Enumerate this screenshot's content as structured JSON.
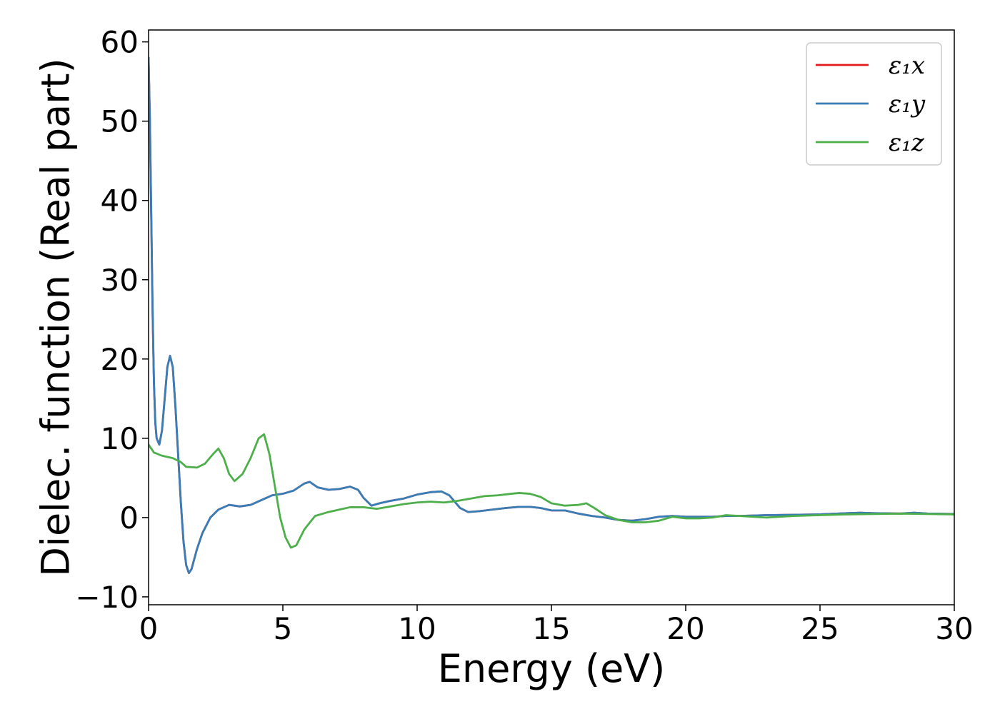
{
  "chart_data": {
    "type": "line",
    "title": "",
    "xlabel": "Energy (eV)",
    "ylabel": "Dielec. function (Real part)",
    "xlim": [
      0,
      30
    ],
    "ylim": [
      -11,
      61.5
    ],
    "xticks": [
      0,
      5,
      10,
      15,
      20,
      25,
      30
    ],
    "yticks": [
      -10,
      0,
      10,
      20,
      30,
      40,
      50,
      60
    ],
    "xtick_labels": [
      "0",
      "5",
      "10",
      "15",
      "20",
      "25",
      "30"
    ],
    "ytick_labels": [
      "−10",
      "0",
      "10",
      "20",
      "30",
      "40",
      "50",
      "60"
    ],
    "grid": false,
    "legend_position": "top-right",
    "series": [
      {
        "name": "ε₁x",
        "color": "#e41a1c",
        "points": [
          [
            0.0,
            58.0
          ],
          [
            0.05,
            50.0
          ],
          [
            0.1,
            38.0
          ],
          [
            0.15,
            26.0
          ],
          [
            0.2,
            17.0
          ],
          [
            0.25,
            12.0
          ],
          [
            0.3,
            10.0
          ],
          [
            0.4,
            9.2
          ],
          [
            0.5,
            11.0
          ],
          [
            0.6,
            15.0
          ],
          [
            0.7,
            19.0
          ],
          [
            0.8,
            20.4
          ],
          [
            0.9,
            19.0
          ],
          [
            1.0,
            14.0
          ],
          [
            1.1,
            8.0
          ],
          [
            1.2,
            2.0
          ],
          [
            1.3,
            -3.0
          ],
          [
            1.4,
            -6.0
          ],
          [
            1.5,
            -7.0
          ],
          [
            1.6,
            -6.5
          ],
          [
            1.8,
            -4.0
          ],
          [
            2.0,
            -2.0
          ],
          [
            2.3,
            0.0
          ],
          [
            2.6,
            1.0
          ],
          [
            3.0,
            1.6
          ],
          [
            3.4,
            1.4
          ],
          [
            3.8,
            1.6
          ],
          [
            4.2,
            2.2
          ],
          [
            4.6,
            2.8
          ],
          [
            5.0,
            3.0
          ],
          [
            5.4,
            3.4
          ],
          [
            5.8,
            4.3
          ],
          [
            6.0,
            4.5
          ],
          [
            6.3,
            3.8
          ],
          [
            6.7,
            3.5
          ],
          [
            7.1,
            3.6
          ],
          [
            7.5,
            3.9
          ],
          [
            7.8,
            3.5
          ],
          [
            8.0,
            2.5
          ],
          [
            8.3,
            1.5
          ],
          [
            8.6,
            1.8
          ],
          [
            9.0,
            2.1
          ],
          [
            9.5,
            2.4
          ],
          [
            10.0,
            2.9
          ],
          [
            10.5,
            3.2
          ],
          [
            10.9,
            3.3
          ],
          [
            11.2,
            2.8
          ],
          [
            11.6,
            1.2
          ],
          [
            11.9,
            0.7
          ],
          [
            12.3,
            0.8
          ],
          [
            12.8,
            1.0
          ],
          [
            13.3,
            1.2
          ],
          [
            13.8,
            1.35
          ],
          [
            14.2,
            1.35
          ],
          [
            14.6,
            1.2
          ],
          [
            15.0,
            0.9
          ],
          [
            15.5,
            0.9
          ],
          [
            16.0,
            0.5
          ],
          [
            16.5,
            0.2
          ],
          [
            17.0,
            0.0
          ],
          [
            17.5,
            -0.3
          ],
          [
            18.0,
            -0.4
          ],
          [
            18.5,
            -0.2
          ],
          [
            19.0,
            0.1
          ],
          [
            19.5,
            0.2
          ],
          [
            20.0,
            0.1
          ],
          [
            20.5,
            0.1
          ],
          [
            21.0,
            0.1
          ],
          [
            21.5,
            0.2
          ],
          [
            22.0,
            0.2
          ],
          [
            23.0,
            0.3
          ],
          [
            24.0,
            0.35
          ],
          [
            25.0,
            0.4
          ],
          [
            26.0,
            0.55
          ],
          [
            26.5,
            0.6
          ],
          [
            27.0,
            0.55
          ],
          [
            28.0,
            0.5
          ],
          [
            28.5,
            0.6
          ],
          [
            29.0,
            0.5
          ],
          [
            30.0,
            0.45
          ]
        ]
      },
      {
        "name": "ε₁y",
        "color": "#377eb8",
        "points": [
          [
            0.0,
            58.0
          ],
          [
            0.05,
            50.0
          ],
          [
            0.1,
            38.0
          ],
          [
            0.15,
            26.0
          ],
          [
            0.2,
            17.0
          ],
          [
            0.25,
            12.0
          ],
          [
            0.3,
            10.0
          ],
          [
            0.4,
            9.2
          ],
          [
            0.5,
            11.0
          ],
          [
            0.6,
            15.0
          ],
          [
            0.7,
            19.0
          ],
          [
            0.8,
            20.4
          ],
          [
            0.9,
            19.0
          ],
          [
            1.0,
            14.0
          ],
          [
            1.1,
            8.0
          ],
          [
            1.2,
            2.0
          ],
          [
            1.3,
            -3.0
          ],
          [
            1.4,
            -6.0
          ],
          [
            1.5,
            -7.0
          ],
          [
            1.6,
            -6.5
          ],
          [
            1.8,
            -4.0
          ],
          [
            2.0,
            -2.0
          ],
          [
            2.3,
            0.0
          ],
          [
            2.6,
            1.0
          ],
          [
            3.0,
            1.6
          ],
          [
            3.4,
            1.4
          ],
          [
            3.8,
            1.6
          ],
          [
            4.2,
            2.2
          ],
          [
            4.6,
            2.8
          ],
          [
            5.0,
            3.0
          ],
          [
            5.4,
            3.4
          ],
          [
            5.8,
            4.3
          ],
          [
            6.0,
            4.5
          ],
          [
            6.3,
            3.8
          ],
          [
            6.7,
            3.5
          ],
          [
            7.1,
            3.6
          ],
          [
            7.5,
            3.9
          ],
          [
            7.8,
            3.5
          ],
          [
            8.0,
            2.5
          ],
          [
            8.3,
            1.5
          ],
          [
            8.6,
            1.8
          ],
          [
            9.0,
            2.1
          ],
          [
            9.5,
            2.4
          ],
          [
            10.0,
            2.9
          ],
          [
            10.5,
            3.2
          ],
          [
            10.9,
            3.3
          ],
          [
            11.2,
            2.8
          ],
          [
            11.6,
            1.2
          ],
          [
            11.9,
            0.7
          ],
          [
            12.3,
            0.8
          ],
          [
            12.8,
            1.0
          ],
          [
            13.3,
            1.2
          ],
          [
            13.8,
            1.35
          ],
          [
            14.2,
            1.35
          ],
          [
            14.6,
            1.2
          ],
          [
            15.0,
            0.9
          ],
          [
            15.5,
            0.9
          ],
          [
            16.0,
            0.5
          ],
          [
            16.5,
            0.2
          ],
          [
            17.0,
            0.0
          ],
          [
            17.5,
            -0.3
          ],
          [
            18.0,
            -0.4
          ],
          [
            18.5,
            -0.2
          ],
          [
            19.0,
            0.1
          ],
          [
            19.5,
            0.2
          ],
          [
            20.0,
            0.1
          ],
          [
            20.5,
            0.1
          ],
          [
            21.0,
            0.1
          ],
          [
            21.5,
            0.2
          ],
          [
            22.0,
            0.2
          ],
          [
            23.0,
            0.3
          ],
          [
            24.0,
            0.35
          ],
          [
            25.0,
            0.4
          ],
          [
            26.0,
            0.55
          ],
          [
            26.5,
            0.6
          ],
          [
            27.0,
            0.55
          ],
          [
            28.0,
            0.5
          ],
          [
            28.5,
            0.6
          ],
          [
            29.0,
            0.5
          ],
          [
            30.0,
            0.45
          ]
        ]
      },
      {
        "name": "ε₁z",
        "color": "#4daf4a",
        "points": [
          [
            0.0,
            9.2
          ],
          [
            0.2,
            8.2
          ],
          [
            0.5,
            7.8
          ],
          [
            0.9,
            7.5
          ],
          [
            1.2,
            7.0
          ],
          [
            1.4,
            6.4
          ],
          [
            1.8,
            6.3
          ],
          [
            2.1,
            6.8
          ],
          [
            2.4,
            8.0
          ],
          [
            2.6,
            8.7
          ],
          [
            2.8,
            7.5
          ],
          [
            3.0,
            5.5
          ],
          [
            3.2,
            4.6
          ],
          [
            3.5,
            5.5
          ],
          [
            3.8,
            7.5
          ],
          [
            4.1,
            10.0
          ],
          [
            4.3,
            10.5
          ],
          [
            4.5,
            8.0
          ],
          [
            4.7,
            4.0
          ],
          [
            4.9,
            0.0
          ],
          [
            5.1,
            -2.5
          ],
          [
            5.3,
            -3.8
          ],
          [
            5.5,
            -3.5
          ],
          [
            5.8,
            -1.5
          ],
          [
            6.2,
            0.2
          ],
          [
            6.7,
            0.7
          ],
          [
            7.1,
            1.0
          ],
          [
            7.5,
            1.3
          ],
          [
            8.0,
            1.3
          ],
          [
            8.5,
            1.1
          ],
          [
            9.0,
            1.4
          ],
          [
            9.5,
            1.7
          ],
          [
            10.0,
            1.9
          ],
          [
            10.5,
            2.0
          ],
          [
            11.0,
            1.9
          ],
          [
            11.5,
            2.1
          ],
          [
            12.0,
            2.4
          ],
          [
            12.5,
            2.7
          ],
          [
            13.0,
            2.8
          ],
          [
            13.5,
            3.0
          ],
          [
            13.8,
            3.1
          ],
          [
            14.2,
            3.0
          ],
          [
            14.6,
            2.6
          ],
          [
            15.0,
            1.8
          ],
          [
            15.5,
            1.5
          ],
          [
            16.0,
            1.6
          ],
          [
            16.3,
            1.8
          ],
          [
            16.6,
            1.2
          ],
          [
            17.0,
            0.3
          ],
          [
            17.5,
            -0.3
          ],
          [
            18.0,
            -0.6
          ],
          [
            18.5,
            -0.6
          ],
          [
            19.0,
            -0.4
          ],
          [
            19.5,
            0.1
          ],
          [
            20.0,
            -0.1
          ],
          [
            20.5,
            -0.1
          ],
          [
            21.0,
            0.0
          ],
          [
            21.5,
            0.3
          ],
          [
            22.0,
            0.2
          ],
          [
            22.5,
            0.1
          ],
          [
            23.0,
            0.0
          ],
          [
            23.5,
            0.1
          ],
          [
            24.0,
            0.2
          ],
          [
            25.0,
            0.3
          ],
          [
            26.0,
            0.4
          ],
          [
            27.0,
            0.45
          ],
          [
            28.0,
            0.5
          ],
          [
            29.0,
            0.45
          ],
          [
            30.0,
            0.4
          ]
        ]
      }
    ]
  }
}
